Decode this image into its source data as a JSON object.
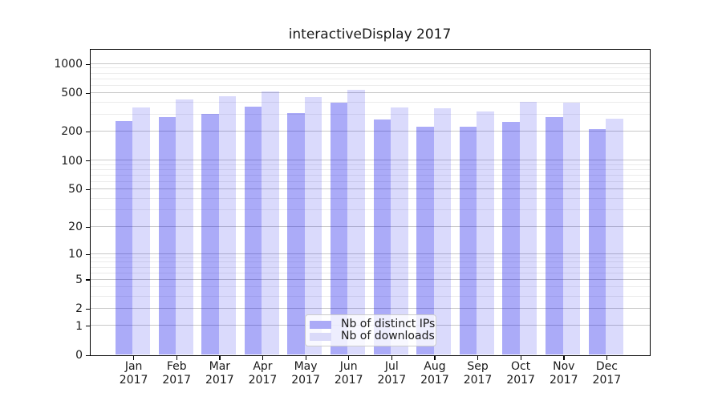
{
  "title": "interactiveDisplay 2017",
  "chart_data": {
    "type": "bar",
    "title": "interactiveDisplay 2017",
    "scale": "symlog (log-like above 1, linear near 0; ticks 0,1,2,5,10,20,50,100,200,500,1000)",
    "categories": [
      "Jan 2017",
      "Feb 2017",
      "Mar 2017",
      "Apr 2017",
      "May 2017",
      "Jun 2017",
      "Jul 2017",
      "Aug 2017",
      "Sep 2017",
      "Oct 2017",
      "Nov 2017",
      "Dec 2017"
    ],
    "x_tick_months": [
      "Jan",
      "Feb",
      "Mar",
      "Apr",
      "May",
      "Jun",
      "Jul",
      "Aug",
      "Sep",
      "Oct",
      "Nov",
      "Dec"
    ],
    "x_tick_year": "2017",
    "series": [
      {
        "name": "Nb of distinct IPs",
        "color": "rgba(10,10,235,0.34)",
        "color_on_white_hex": "#abaaf7",
        "values": [
          252,
          278,
          297,
          357,
          305,
          388,
          262,
          219,
          222,
          250,
          277,
          210
        ]
      },
      {
        "name": "Nb of downloads",
        "color": "rgba(10,10,235,0.15)",
        "color_on_white_hex": "#dadaf9",
        "values": [
          351,
          420,
          455,
          512,
          450,
          530,
          352,
          343,
          316,
          397,
          390,
          265
        ]
      }
    ],
    "y_major_ticks": [
      0,
      1,
      2,
      5,
      10,
      20,
      50,
      100,
      200,
      500,
      1000
    ],
    "y_minor_ticks": [
      3,
      4,
      6,
      7,
      8,
      9,
      30,
      40,
      60,
      70,
      80,
      90,
      300,
      400,
      600,
      700,
      800,
      900
    ],
    "ylim": [
      0,
      1410
    ],
    "xlabel": "",
    "ylabel": "",
    "grid": true,
    "legend_position": "lower center"
  },
  "colors": {
    "background": "#ffffff",
    "spine": "#000000",
    "grid_major": "#c9c9c9",
    "grid_minor": "#ebebeb",
    "text": "#1a1a1a",
    "legend_border": "#cccccc"
  }
}
